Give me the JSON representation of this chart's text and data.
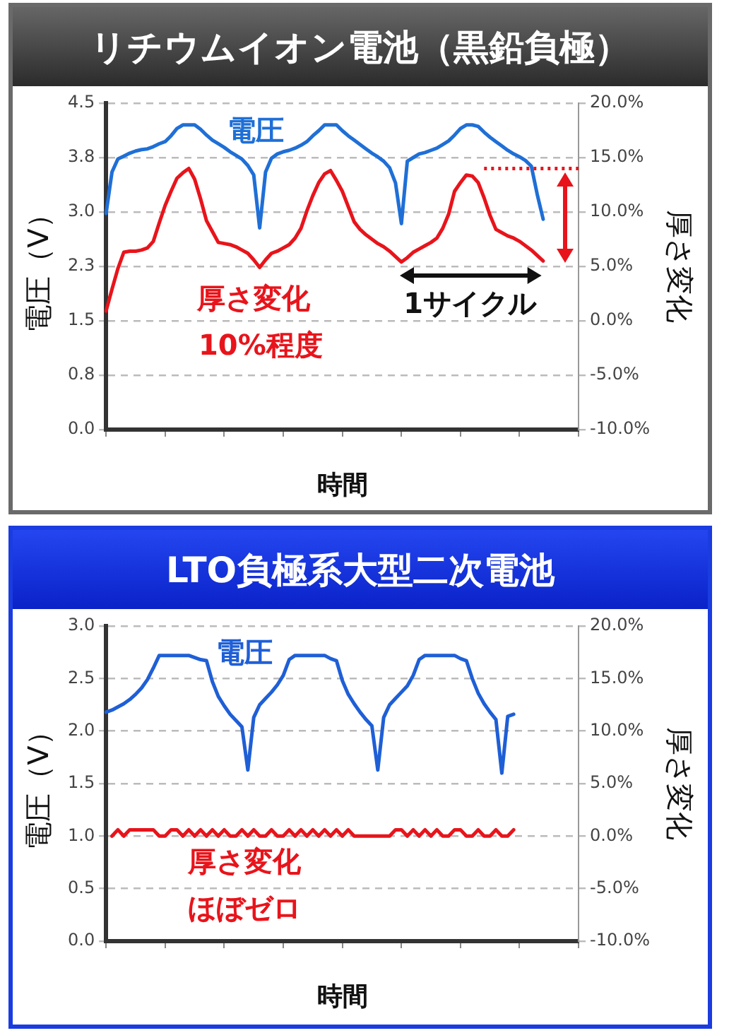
{
  "chart_data": [
    {
      "type": "line",
      "title": "リチウムイオン電池（黒鉛負極）",
      "xlabel": "時間",
      "ylabel": "電圧（V）",
      "y2label": "厚さ変化",
      "categories": [
        null,
        null,
        null,
        null,
        null,
        null,
        null,
        null,
        null,
        null,
        null,
        null,
        null,
        null,
        null,
        null,
        null,
        null,
        null,
        null,
        null,
        null,
        null,
        null,
        null,
        null,
        null,
        null,
        null,
        null,
        null,
        null,
        null,
        null,
        null,
        null,
        null,
        null,
        null,
        null,
        null,
        null,
        null,
        null,
        null,
        null,
        null,
        null,
        null,
        null,
        null,
        null,
        null,
        null,
        null,
        null,
        null,
        null,
        null,
        null,
        null,
        null,
        null,
        null,
        null,
        null,
        null,
        null,
        null,
        null,
        null,
        null,
        null,
        null,
        null,
        null,
        null,
        null,
        null,
        null,
        null
      ],
      "ylim": [
        0,
        4.5
      ],
      "yticks": [
        {
          "value": 0,
          "label": "0.0"
        },
        {
          "value": 0.75,
          "label": "0.8"
        },
        {
          "value": 1.5,
          "label": "1.5"
        },
        {
          "value": 2.25,
          "label": "2.3"
        },
        {
          "value": 3,
          "label": "3.0"
        },
        {
          "value": 3.75,
          "label": "3.8"
        },
        {
          "value": 4.5,
          "label": "4.5"
        }
      ],
      "y2lim": [
        -10,
        20
      ],
      "y2ticks": [
        {
          "value": -10,
          "label": "-10.0%"
        },
        {
          "value": -5,
          "label": "-5.0%"
        },
        {
          "value": 0,
          "label": "0.0%"
        },
        {
          "value": 5,
          "label": "5.0%"
        },
        {
          "value": 10,
          "label": "10.0%"
        },
        {
          "value": 15,
          "label": "15.0%"
        },
        {
          "value": 20,
          "label": "20.0%"
        }
      ],
      "grid": "y",
      "legend": false,
      "marker": "none",
      "series": [
        {
          "name": "電圧",
          "color": "#1f6fd6",
          "values": [
            2.98,
            3.55,
            3.73,
            3.77,
            3.81,
            3.84,
            3.86,
            3.87,
            3.9,
            3.94,
            3.97,
            4.05,
            4.15,
            4.2,
            4.2,
            4.2,
            4.14,
            4.06,
            3.99,
            3.94,
            3.89,
            3.83,
            3.78,
            3.73,
            3.64,
            3.51,
            2.78,
            3.55,
            3.74,
            3.8,
            3.83,
            3.85,
            3.88,
            3.92,
            3.97,
            4.05,
            4.12,
            4.2,
            4.2,
            4.2,
            4.12,
            4.05,
            3.99,
            3.93,
            3.87,
            3.81,
            3.76,
            3.7,
            3.61,
            3.4,
            2.84,
            3.7,
            3.75,
            3.8,
            3.82,
            3.85,
            3.88,
            3.93,
            3.98,
            4.06,
            4.15,
            4.2,
            4.2,
            4.18,
            4.1,
            4.03,
            3.97,
            3.91,
            3.85,
            3.8,
            3.76,
            3.71,
            3.63,
            3.24,
            2.9,
            null,
            null,
            null,
            null,
            null,
            null
          ]
        },
        {
          "name": "厚さ変化",
          "color": "#e8141b",
          "axis": "y2",
          "values": [
            0.9,
            2.9,
            4.8,
            6.3,
            6.4,
            6.4,
            6.5,
            6.7,
            7.3,
            9.0,
            10.6,
            11.9,
            13.1,
            13.6,
            14.0,
            13.0,
            11.2,
            9.2,
            8.2,
            7.2,
            7.1,
            7.0,
            6.8,
            6.5,
            6.2,
            5.6,
            4.9,
            5.6,
            6.2,
            6.4,
            6.7,
            7.0,
            7.6,
            8.5,
            10.1,
            11.5,
            12.7,
            13.5,
            13.8,
            12.9,
            11.9,
            10.5,
            9.1,
            8.4,
            7.9,
            7.5,
            7.1,
            6.8,
            6.4,
            5.9,
            5.4,
            5.8,
            6.3,
            6.6,
            6.9,
            7.2,
            7.6,
            8.5,
            9.8,
            11.9,
            12.7,
            13.4,
            13.3,
            12.7,
            11.3,
            9.7,
            8.4,
            8.1,
            7.8,
            7.6,
            7.3,
            6.9,
            6.5,
            6.0,
            5.5,
            null,
            null,
            null,
            null,
            null,
            null
          ]
        }
      ],
      "ref_lines": [
        {
          "axis": "y2",
          "value": 14,
          "color": "#e8141b",
          "line_style": "dotted"
        }
      ],
      "annotations": [
        "10%程度",
        "1サイクル"
      ]
    },
    {
      "type": "line",
      "title": "LTO負極系大型二次電池",
      "xlabel": "時間",
      "ylabel": "電圧（V）",
      "y2label": "厚さ変化",
      "categories": [
        null,
        null,
        null,
        null,
        null,
        null,
        null,
        null,
        null,
        null,
        null,
        null,
        null,
        null,
        null,
        null,
        null,
        null,
        null,
        null,
        null,
        null,
        null,
        null,
        null,
        null,
        null,
        null,
        null,
        null,
        null,
        null,
        null,
        null,
        null,
        null,
        null,
        null,
        null,
        null,
        null,
        null,
        null,
        null,
        null,
        null,
        null,
        null,
        null,
        null,
        null,
        null,
        null,
        null,
        null,
        null,
        null,
        null,
        null,
        null,
        null,
        null,
        null,
        null,
        null,
        null,
        null,
        null,
        null,
        null,
        null,
        null,
        null,
        null,
        null,
        null,
        null,
        null,
        null,
        null,
        null
      ],
      "ylim": [
        0,
        3
      ],
      "yticks": [
        {
          "value": 0,
          "label": "0.0"
        },
        {
          "value": 0.5,
          "label": "0.5"
        },
        {
          "value": 1,
          "label": "1.0"
        },
        {
          "value": 1.5,
          "label": "1.5"
        },
        {
          "value": 2,
          "label": "2.0"
        },
        {
          "value": 2.5,
          "label": "2.5"
        },
        {
          "value": 3,
          "label": "3.0"
        }
      ],
      "y2lim": [
        -10,
        20
      ],
      "y2ticks": [
        {
          "value": -10,
          "label": "-10.0%"
        },
        {
          "value": -5,
          "label": "-5.0%"
        },
        {
          "value": 0,
          "label": "0.0%"
        },
        {
          "value": 5,
          "label": "5.0%"
        },
        {
          "value": 10,
          "label": "10.0%"
        },
        {
          "value": 15,
          "label": "15.0%"
        },
        {
          "value": 20,
          "label": "20.0%"
        }
      ],
      "grid": "y",
      "legend": false,
      "marker": "none",
      "series": [
        {
          "name": "電圧",
          "color": "#1f5fd6",
          "values": [
            2.18,
            2.2,
            2.23,
            2.26,
            2.3,
            2.35,
            2.41,
            2.49,
            2.6,
            2.72,
            2.72,
            2.72,
            2.72,
            2.72,
            2.72,
            2.7,
            2.68,
            2.67,
            2.47,
            2.33,
            2.24,
            2.16,
            2.1,
            2.04,
            1.63,
            2.13,
            2.25,
            2.31,
            2.37,
            2.44,
            2.53,
            2.68,
            2.72,
            2.72,
            2.72,
            2.72,
            2.72,
            2.72,
            2.69,
            2.67,
            2.48,
            2.35,
            2.26,
            2.18,
            2.11,
            2.05,
            1.63,
            2.13,
            2.25,
            2.31,
            2.37,
            2.43,
            2.53,
            2.68,
            2.72,
            2.72,
            2.72,
            2.72,
            2.72,
            2.72,
            2.69,
            2.67,
            2.5,
            2.36,
            2.26,
            2.18,
            2.11,
            1.6,
            2.14,
            2.16,
            null,
            null,
            null,
            null,
            null,
            null,
            null,
            null,
            null,
            null,
            null
          ]
        },
        {
          "name": "厚さ変化",
          "color": "#e8141b",
          "axis": "y2",
          "values": [
            null,
            0,
            0.6,
            0,
            0.6,
            0.6,
            0.6,
            0.6,
            0.6,
            0,
            0,
            0.6,
            0.6,
            0,
            0.6,
            0,
            0.6,
            0,
            0.6,
            0,
            0.6,
            0,
            0,
            0.6,
            0,
            0.6,
            0,
            0,
            0.6,
            0,
            0,
            0.6,
            0,
            0.6,
            0,
            0.6,
            0,
            0.6,
            0,
            0.6,
            0,
            0.6,
            0,
            0,
            0,
            0,
            0,
            0,
            0,
            0.6,
            0.6,
            0,
            0.6,
            0,
            0.6,
            0,
            0.6,
            0,
            0,
            0.6,
            0.6,
            0,
            0,
            0.6,
            0,
            0,
            0.6,
            0,
            0,
            0.6,
            null,
            null,
            null,
            null,
            null,
            null,
            null,
            null,
            null,
            null,
            null
          ]
        }
      ],
      "annotations": [
        "ほぼゼロ"
      ]
    }
  ]
}
